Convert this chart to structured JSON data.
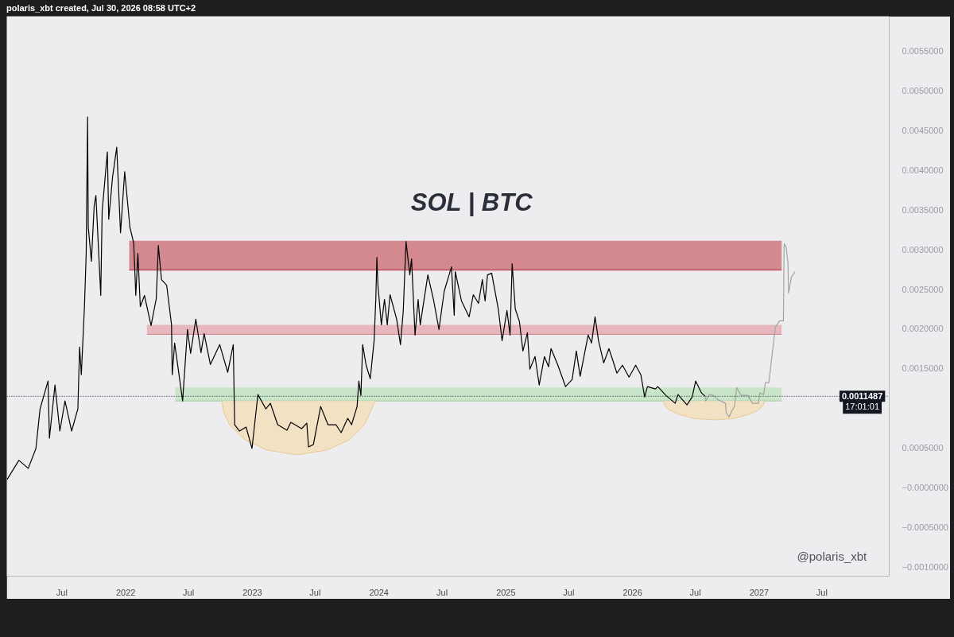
{
  "chart_data": {
    "type": "line",
    "title": "SOL | BTC",
    "annotations": [
      "17:01:01",
      "@polaris_xbt",
      "polaris_xbt created, Jul 30, 2026 08:58 UTC+2"
    ],
    "xlim": [
      "2021-01-23",
      "2028-01-11"
    ],
    "xticks": [
      {
        "value": "2021-07",
        "label": "Jul"
      },
      "2022",
      {
        "value": "2022-07",
        "label": "Jul"
      },
      "2023",
      {
        "value": "2023-07",
        "label": "Jul"
      },
      "2024",
      {
        "value": "2024-07",
        "label": "Jul"
      },
      "2025",
      {
        "value": "2025-07",
        "label": "Jul"
      },
      "2026",
      {
        "value": "2026-07",
        "label": "Jul"
      },
      "2027",
      {
        "value": "2027-07",
        "label": "Jul"
      }
    ],
    "ylim": [
      -0.00112,
      0.00594
    ],
    "yticks": [
      {
        "value": -0.001,
        "label": "−0.0010000"
      },
      {
        "value": -0.0005,
        "label": "−0.0005000"
      },
      {
        "value": 0,
        "label": "−0.0000000"
      },
      {
        "value": 0.0005,
        "label": "0.0005000"
      },
      {
        "value": 0.0015,
        "label": "0.0015000"
      },
      {
        "value": 0.002,
        "label": "0.0020000"
      },
      {
        "value": 0.0025,
        "label": "0.0025000"
      },
      {
        "value": 0.003,
        "label": "0.0030000"
      },
      {
        "value": 0.0035,
        "label": "0.0035000"
      },
      {
        "value": 0.004,
        "label": "0.0040000"
      },
      {
        "value": 0.0045,
        "label": "0.0045000"
      },
      {
        "value": 0.005,
        "label": "0.0050000"
      },
      {
        "value": 0.0055,
        "label": "0.0055000"
      }
    ],
    "grid": false,
    "ref_lines": [
      {
        "axis": "y",
        "value": 0.0011487,
        "label": "0.0011487",
        "color": "#131722",
        "line_style": "dotted"
      }
    ],
    "series": [
      {
        "color": "#af2933",
        "x": [
          "2022-01-11",
          "2027-03-07"
        ],
        "values": [
          0.00274,
          0.00274
        ],
        "lower": [
          0.00274,
          0.00274
        ],
        "upper": [
          0.00311,
          0.00311
        ]
      },
      {
        "color": "#d27e87",
        "x": [
          "2022-03-03",
          "2027-03-07"
        ],
        "values": [
          0.00193,
          0.00193
        ],
        "lower": [
          0.00193,
          0.00193
        ],
        "upper": [
          0.00205,
          0.00205
        ]
      },
      {
        "color": "#9dd09d",
        "x": [
          "2022-05-24",
          "2027-03-07"
        ],
        "values": [
          0.00109,
          0.00109
        ],
        "lower": [
          0.00109,
          0.00109
        ],
        "upper": [
          0.00126,
          0.00126
        ]
      },
      {
        "color": "#e9c894",
        "x": [
          "2022-10-06",
          "2022-10-10",
          "2022-10-27",
          "2022-12-10",
          "2023-02-12",
          "2023-05-10",
          "2023-08-04",
          "2023-10-08",
          "2023-11-20",
          "2023-12-07",
          "2023-12-21"
        ],
        "values": [
          0.00109,
          0.00095,
          0.00079,
          0.0006,
          0.00047,
          0.00041,
          0.00047,
          0.0006,
          0.00079,
          0.00095,
          0.00109
        ],
        "lower": [
          0.00109,
          0.00095,
          0.00079,
          0.0006,
          0.00047,
          0.00041,
          0.00047,
          0.0006,
          0.00079,
          0.00095,
          0.00109
        ],
        "upper": [
          0.00109,
          0.00109,
          0.00109,
          0.00109,
          0.00109,
          0.00109,
          0.00109,
          0.00109,
          0.00109,
          0.00109,
          0.00109
        ]
      },
      {
        "color": "#e9c894",
        "x": [
          "2026-04-01",
          "2026-04-03",
          "2026-04-15",
          "2026-05-14",
          "2026-06-26",
          "2026-08-24",
          "2026-10-21",
          "2026-12-03",
          "2027-01-02",
          "2027-01-13",
          "2027-01-16"
        ],
        "values": [
          0.00109,
          0.00104,
          0.00098,
          0.00092,
          0.00087,
          0.00085,
          0.00087,
          0.00092,
          0.00098,
          0.00104,
          0.00109
        ],
        "lower": [
          0.00109,
          0.00104,
          0.00098,
          0.00092,
          0.00087,
          0.00085,
          0.00087,
          0.00092,
          0.00098,
          0.00104,
          0.00109
        ],
        "upper": [
          0.00109,
          0.00109,
          0.00109,
          0.00109,
          0.00109,
          0.00109,
          0.00109,
          0.00109,
          0.00109,
          0.00109,
          0.00109
        ]
      },
      {
        "color": "#000000",
        "x": [
          "2021-01-24",
          "2021-02-27",
          "2021-03-26",
          "2021-04-17",
          "2021-04-29",
          "2021-05-22",
          "2021-05-26",
          "2021-06-11",
          "2021-06-25",
          "2021-07-10",
          "2021-07-29",
          "2021-08-16",
          "2021-08-21",
          "2021-08-26",
          "2021-09-04",
          "2021-09-09",
          "2021-09-13",
          "2021-09-15",
          "2021-09-24",
          "2021-10-02",
          "2021-10-07",
          "2021-10-21",
          "2021-10-25",
          "2021-11-09",
          "2021-11-13",
          "2021-11-24",
          "2021-12-06",
          "2021-12-17",
          "2021-12-29",
          "2022-01-13",
          "2022-01-24",
          "2022-01-30",
          "2022-02-05",
          "2022-02-12",
          "2022-02-24",
          "2022-03-15",
          "2022-03-30",
          "2022-04-05",
          "2022-04-14",
          "2022-04-29",
          "2022-05-13",
          "2022-05-15",
          "2022-05-22",
          "2022-06-14",
          "2022-06-28",
          "2022-07-07",
          "2022-07-22",
          "2022-08-06",
          "2022-08-15",
          "2022-09-02",
          "2022-09-29",
          "2022-10-22",
          "2022-11-07",
          "2022-11-11",
          "2022-11-25",
          "2022-12-14",
          "2022-12-31",
          "2023-01-17",
          "2023-02-09",
          "2023-02-22",
          "2023-03-15",
          "2023-04-11",
          "2023-04-22",
          "2023-05-23",
          "2023-06-07",
          "2023-06-12",
          "2023-06-26",
          "2023-07-17",
          "2023-08-07",
          "2023-08-30",
          "2023-09-14",
          "2023-10-03",
          "2023-10-14",
          "2023-10-30",
          "2023-11-04",
          "2023-11-10",
          "2023-11-15",
          "2023-11-25",
          "2023-12-07",
          "2023-12-18",
          "2023-12-23",
          "2023-12-26",
          "2023-12-29",
          "2024-01-08",
          "2024-01-17",
          "2024-01-25",
          "2024-02-02",
          "2024-02-21",
          "2024-03-03",
          "2024-03-11",
          "2024-03-19",
          "2024-03-30",
          "2024-04-04",
          "2024-04-14",
          "2024-04-23",
          "2024-04-29",
          "2024-05-21",
          "2024-06-07",
          "2024-06-22",
          "2024-07-07",
          "2024-07-28",
          "2024-08-05",
          "2024-08-08",
          "2024-08-26",
          "2024-09-17",
          "2024-09-29",
          "2024-10-14",
          "2024-10-25",
          "2024-11-02",
          "2024-11-09",
          "2024-11-21",
          "2024-12-10",
          "2024-12-21",
          "2025-01-04",
          "2025-01-13",
          "2025-01-19",
          "2025-01-28",
          "2025-02-09",
          "2025-02-19",
          "2025-03-04",
          "2025-03-11",
          "2025-03-26",
          "2025-04-07",
          "2025-04-22",
          "2025-05-04",
          "2025-05-11",
          "2025-05-30",
          "2025-06-22",
          "2025-07-11",
          "2025-07-23",
          "2025-08-03",
          "2025-08-26",
          "2025-09-05",
          "2025-09-15",
          "2025-09-25",
          "2025-10-10",
          "2025-10-25",
          "2025-11-06",
          "2025-11-17",
          "2025-12-03",
          "2025-12-22",
          "2026-01-10",
          "2026-01-25",
          "2026-02-05",
          "2026-02-13",
          "2026-03-08",
          "2026-03-15",
          "2026-04-07",
          "2026-05-04",
          "2026-05-12",
          "2026-06-07",
          "2026-06-22",
          "2026-07-02",
          "2026-07-19",
          "2026-07-29"
        ],
        "values": [
          0.0001,
          0.00034,
          0.00024,
          0.00049,
          0.00099,
          0.00134,
          0.00062,
          0.00129,
          0.00071,
          0.00109,
          0.00071,
          0.00099,
          0.00177,
          0.00142,
          0.00228,
          0.00295,
          0.00467,
          0.00328,
          0.00285,
          0.00355,
          0.00368,
          0.00242,
          0.00348,
          0.00423,
          0.00338,
          0.00391,
          0.00429,
          0.00321,
          0.00398,
          0.00328,
          0.00308,
          0.00242,
          0.00295,
          0.00228,
          0.00242,
          0.00204,
          0.00238,
          0.00305,
          0.00262,
          0.00255,
          0.00205,
          0.00142,
          0.00182,
          0.00109,
          0.00199,
          0.00169,
          0.00212,
          0.0017,
          0.00194,
          0.00155,
          0.0018,
          0.00145,
          0.0018,
          0.00079,
          0.00071,
          0.00076,
          0.00049,
          0.00117,
          0.00099,
          0.00106,
          0.00079,
          0.00072,
          0.00082,
          0.00074,
          0.00081,
          0.00051,
          0.00054,
          0.00102,
          0.00079,
          0.00079,
          0.00069,
          0.00087,
          0.00079,
          0.00102,
          0.00134,
          0.00116,
          0.0018,
          0.00154,
          0.00137,
          0.00185,
          0.00238,
          0.0029,
          0.00255,
          0.00205,
          0.00237,
          0.00205,
          0.00243,
          0.00212,
          0.0018,
          0.00222,
          0.0031,
          0.00268,
          0.00288,
          0.00192,
          0.00237,
          0.00205,
          0.00268,
          0.00235,
          0.00199,
          0.00247,
          0.00278,
          0.00217,
          0.00272,
          0.00235,
          0.00215,
          0.00243,
          0.00232,
          0.00262,
          0.00235,
          0.00268,
          0.0027,
          0.00225,
          0.00185,
          0.00223,
          0.00192,
          0.00282,
          0.00225,
          0.00209,
          0.00172,
          0.00195,
          0.00149,
          0.00165,
          0.00129,
          0.00165,
          0.00152,
          0.00175,
          0.00155,
          0.00127,
          0.00136,
          0.00172,
          0.0014,
          0.00192,
          0.00182,
          0.00215,
          0.00185,
          0.00157,
          0.00175,
          0.00159,
          0.00144,
          0.00154,
          0.00139,
          0.00154,
          0.00142,
          0.00114,
          0.00127,
          0.00124,
          0.00127,
          0.00116,
          0.00106,
          0.00117,
          0.00104,
          0.00114,
          0.00134,
          0.00119,
          0.00115
        ]
      },
      {
        "color": "#a3a3a3",
        "x": [
          "2026-07-29",
          "2026-07-31",
          "2026-08-11",
          "2026-08-22",
          "2026-09-03",
          "2026-09-26",
          "2026-09-28",
          "2026-10-07",
          "2026-10-15",
          "2026-10-22",
          "2026-10-28",
          "2026-11-10",
          "2026-11-29",
          "2026-12-13",
          "2026-12-30",
          "2027-01-03",
          "2027-01-14",
          "2027-01-19",
          "2027-01-29",
          "2027-02-04",
          "2027-02-14",
          "2027-02-17",
          "2027-03-01",
          "2027-03-12",
          "2027-03-14",
          "2027-03-20",
          "2027-03-25",
          "2027-03-27",
          "2027-04-04",
          "2027-04-09",
          "2027-04-14"
        ],
        "values": [
          0.00115,
          0.00109,
          0.00117,
          0.00116,
          0.00111,
          0.00106,
          0.00094,
          0.00089,
          0.00097,
          0.00102,
          0.00126,
          0.00116,
          0.00116,
          0.00106,
          0.00106,
          0.00119,
          0.00117,
          0.00132,
          0.00132,
          0.00154,
          0.00192,
          0.00202,
          0.0021,
          0.0021,
          0.00307,
          0.00303,
          0.00283,
          0.00245,
          0.00265,
          0.00268,
          0.00272
        ]
      }
    ]
  }
}
